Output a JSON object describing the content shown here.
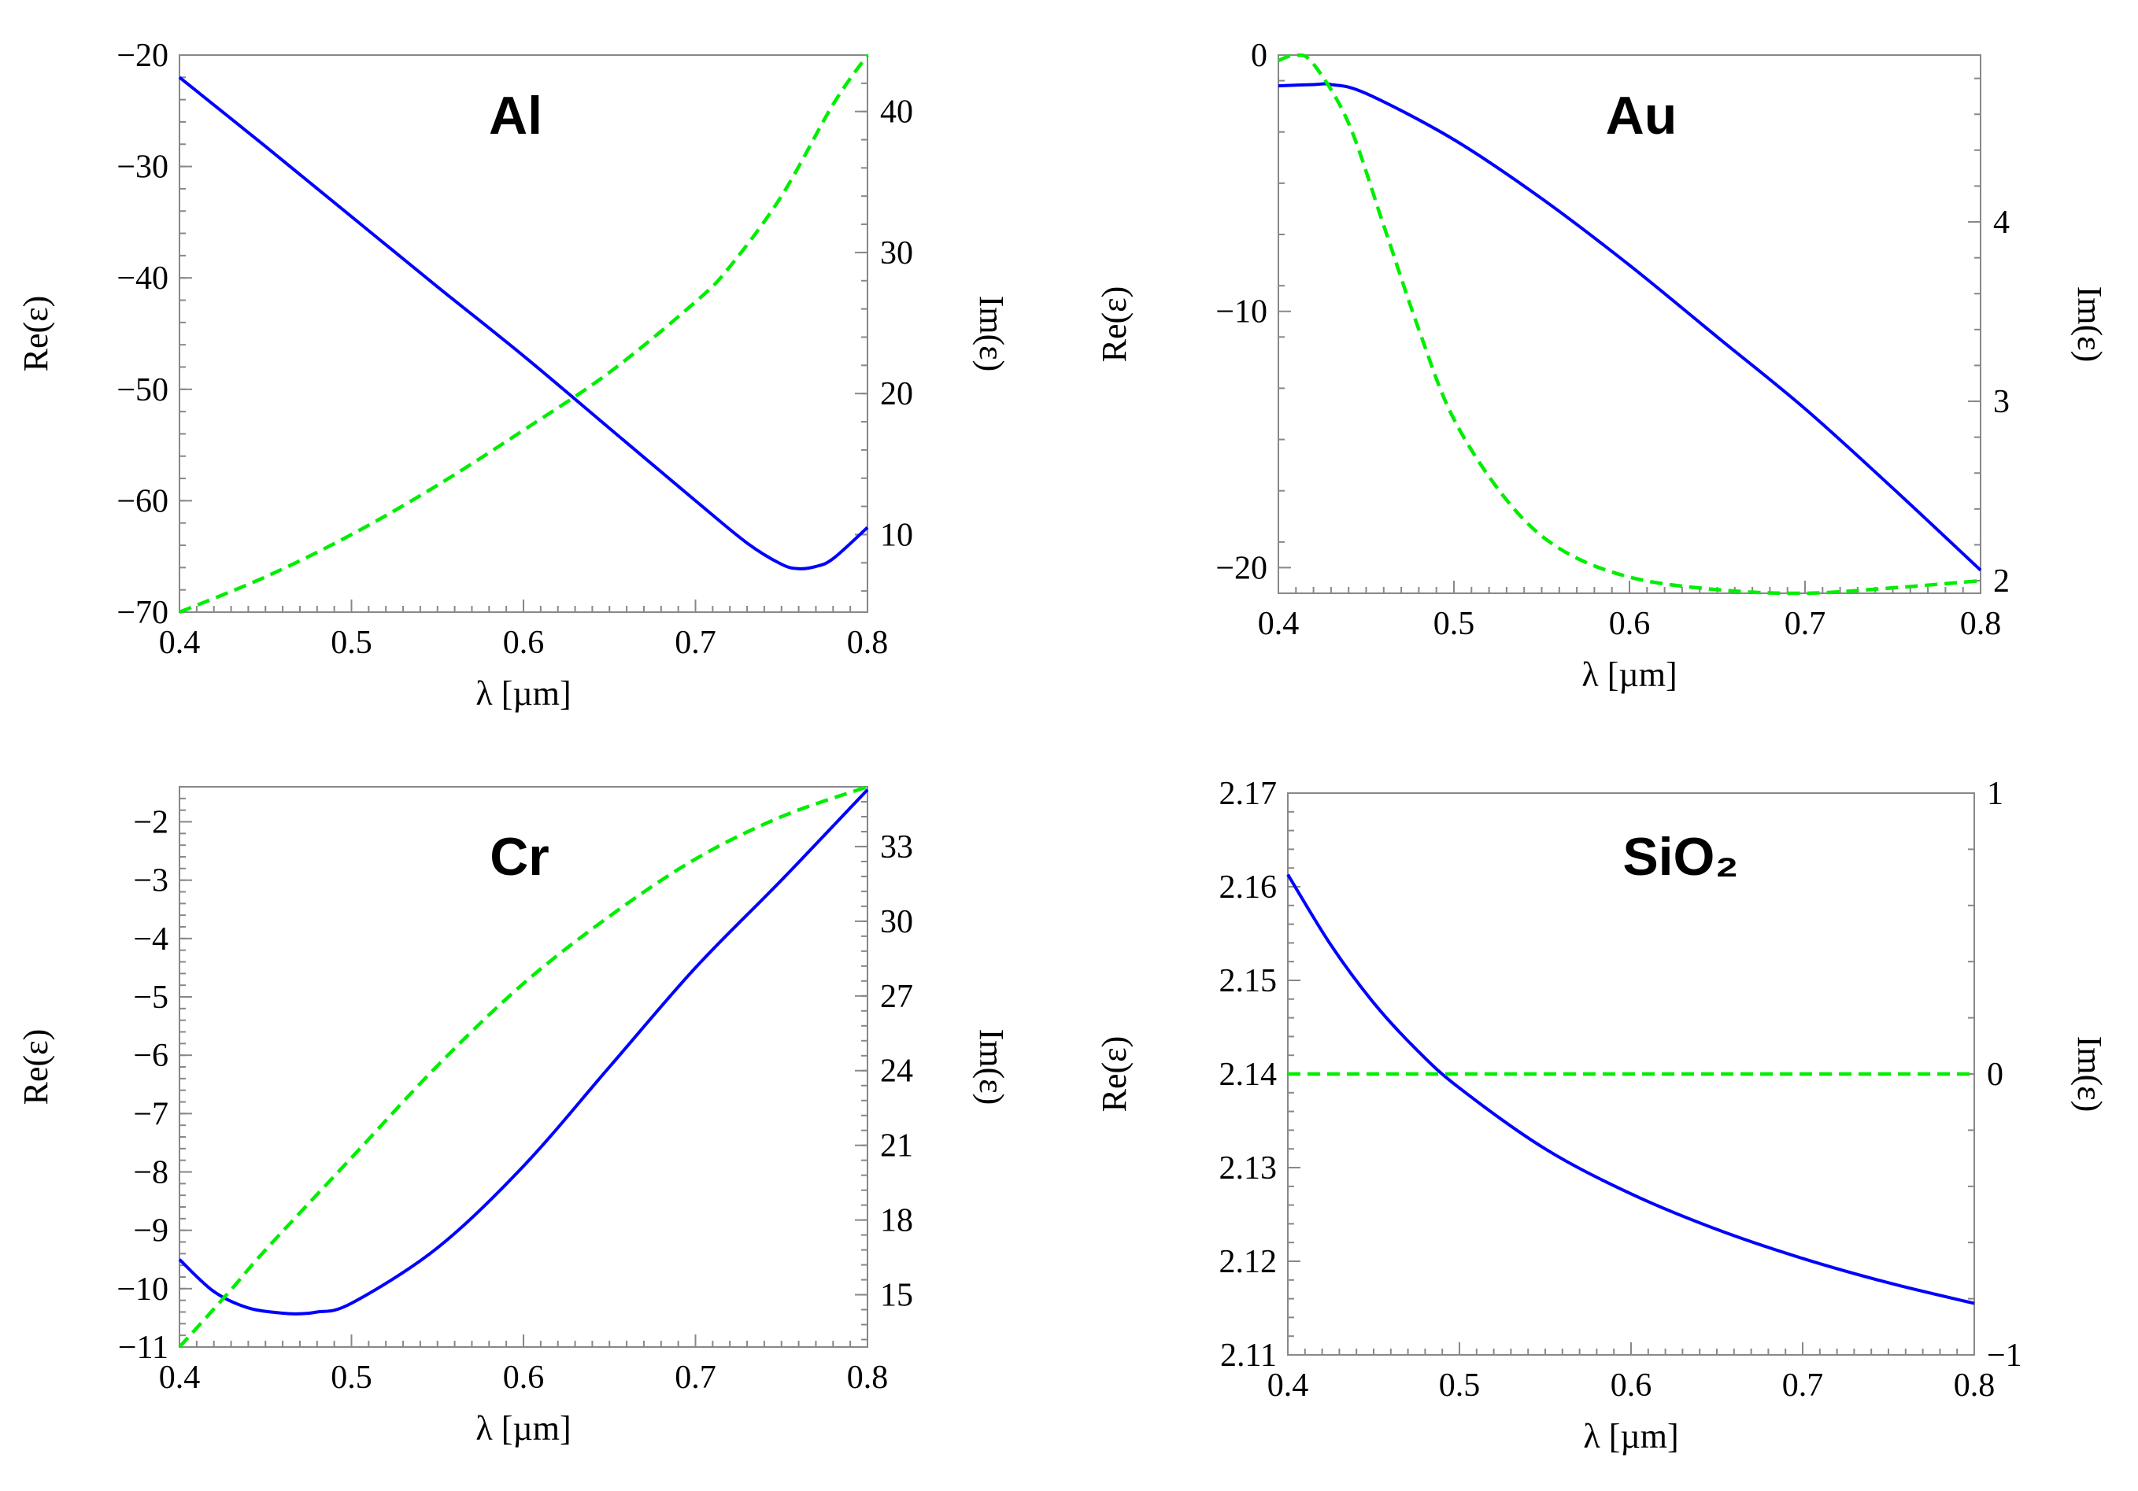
{
  "figure": {
    "colors": {
      "re": "#0000ff",
      "im": "#00ee00",
      "axis": "#888888",
      "text": "#000000"
    }
  },
  "chart_data": [
    {
      "type": "line",
      "title": "Al",
      "xlabel": "λ [µm]",
      "ylabel": "Re(ε)",
      "y2label": "Im(ε)",
      "xlim": [
        0.4,
        0.8
      ],
      "ylim": [
        -70,
        -20
      ],
      "y2lim": [
        4.5,
        44
      ],
      "xticks": [
        "0.4",
        "0.5",
        "0.6",
        "0.7",
        "0.8"
      ],
      "yticks": [
        "−20",
        "−30",
        "−40",
        "−50",
        "−60",
        "−70"
      ],
      "y2ticks": [
        "40",
        "30",
        "20",
        "10"
      ],
      "series": [
        {
          "name": "Re(ε)",
          "axis": "left",
          "style": "solid",
          "x": [
            0.4,
            0.45,
            0.5,
            0.55,
            0.6,
            0.65,
            0.7,
            0.73,
            0.75,
            0.76,
            0.77,
            0.78,
            0.8
          ],
          "values": [
            -22,
            -28.2,
            -34.5,
            -40.8,
            -47,
            -53.5,
            -60,
            -63.8,
            -65.7,
            -66.1,
            -65.9,
            -65.2,
            -62.4
          ]
        },
        {
          "name": "Im(ε)",
          "axis": "right",
          "style": "dashed",
          "x": [
            0.4,
            0.45,
            0.5,
            0.55,
            0.6,
            0.65,
            0.7,
            0.72,
            0.75,
            0.78,
            0.8
          ],
          "values": [
            4.5,
            7,
            10,
            13.5,
            17.4,
            21.5,
            26.5,
            29,
            34,
            40.5,
            44
          ]
        }
      ]
    },
    {
      "type": "line",
      "title": "Au",
      "xlabel": "λ [µm]",
      "ylabel": "Re(ε)",
      "y2label": "Im(ε)",
      "xlim": [
        0.4,
        0.8
      ],
      "ylim": [
        -21,
        0
      ],
      "y2lim": [
        1.93,
        4.93
      ],
      "xticks": [
        "0.4",
        "0.5",
        "0.6",
        "0.7",
        "0.8"
      ],
      "yticks": [
        "0",
        "−10",
        "−20"
      ],
      "y2ticks": [
        "4",
        "3",
        "2"
      ],
      "series": [
        {
          "name": "Re(ε)",
          "axis": "left",
          "style": "solid",
          "x": [
            0.4,
            0.42,
            0.43,
            0.45,
            0.5,
            0.55,
            0.6,
            0.65,
            0.7,
            0.75,
            0.8
          ],
          "values": [
            -1.2,
            -1.15,
            -1.15,
            -1.5,
            -3.3,
            -5.6,
            -8.2,
            -11,
            -13.8,
            -16.9,
            -20.1
          ]
        },
        {
          "name": "Im(ε)",
          "axis": "right",
          "style": "dashed",
          "x": [
            0.4,
            0.41,
            0.42,
            0.44,
            0.46,
            0.48,
            0.5,
            0.53,
            0.56,
            0.6,
            0.65,
            0.7,
            0.75,
            0.8
          ],
          "values": [
            4.9,
            4.93,
            4.88,
            4.55,
            3.98,
            3.4,
            2.9,
            2.45,
            2.18,
            2.02,
            1.95,
            1.93,
            1.96,
            2.0
          ]
        }
      ]
    },
    {
      "type": "line",
      "title": "Cr",
      "xlabel": "λ [µm]",
      "ylabel": "Re(ε)",
      "y2label": "Im(ε)",
      "xlim": [
        0.4,
        0.8
      ],
      "ylim": [
        -11,
        -1.4
      ],
      "y2lim": [
        12.9,
        35.4
      ],
      "xticks": [
        "0.4",
        "0.5",
        "0.6",
        "0.7",
        "0.8"
      ],
      "yticks": [
        "−2",
        "−3",
        "−4",
        "−5",
        "−6",
        "−7",
        "−8",
        "−9",
        "−10",
        "−11"
      ],
      "y2ticks": [
        "33",
        "30",
        "27",
        "24",
        "21",
        "18",
        "15"
      ],
      "series": [
        {
          "name": "Re(ε)",
          "axis": "left",
          "style": "solid",
          "x": [
            0.4,
            0.42,
            0.44,
            0.46,
            0.47,
            0.48,
            0.5,
            0.55,
            0.6,
            0.65,
            0.7,
            0.75,
            0.8
          ],
          "values": [
            -9.5,
            -10.05,
            -10.33,
            -10.42,
            -10.43,
            -10.4,
            -10.25,
            -9.3,
            -7.9,
            -6.2,
            -4.5,
            -3.0,
            -1.45
          ]
        },
        {
          "name": "Im(ε)",
          "axis": "right",
          "style": "dashed",
          "x": [
            0.4,
            0.43,
            0.45,
            0.5,
            0.55,
            0.6,
            0.65,
            0.7,
            0.75,
            0.8
          ],
          "values": [
            12.9,
            15.2,
            16.8,
            20.5,
            24.2,
            27.5,
            30.2,
            32.5,
            34.2,
            35.4
          ]
        }
      ]
    },
    {
      "type": "line",
      "title": "SiO₂",
      "xlabel": "λ [µm]",
      "ylabel": "Re(ε)",
      "y2label": "Im(ε)",
      "xlim": [
        0.4,
        0.8
      ],
      "ylim": [
        2.11,
        2.17
      ],
      "y2lim": [
        -1,
        1
      ],
      "xticks": [
        "0.4",
        "0.5",
        "0.6",
        "0.7",
        "0.8"
      ],
      "yticks": [
        "2.17",
        "2.16",
        "2.15",
        "2.14",
        "2.13",
        "2.12",
        "2.11"
      ],
      "y2ticks": [
        "1",
        "0",
        "−1"
      ],
      "series": [
        {
          "name": "Re(ε)",
          "axis": "left",
          "style": "solid",
          "x": [
            0.4,
            0.425,
            0.45,
            0.475,
            0.5,
            0.55,
            0.6,
            0.65,
            0.7,
            0.75,
            0.8
          ],
          "values": [
            2.1613,
            2.1538,
            2.1476,
            2.1426,
            2.1385,
            2.132,
            2.1272,
            2.1234,
            2.1203,
            2.1177,
            2.1155
          ]
        },
        {
          "name": "Im(ε)",
          "axis": "right",
          "style": "dashed",
          "x": [
            0.4,
            0.8
          ],
          "values": [
            0,
            0
          ]
        }
      ]
    }
  ]
}
